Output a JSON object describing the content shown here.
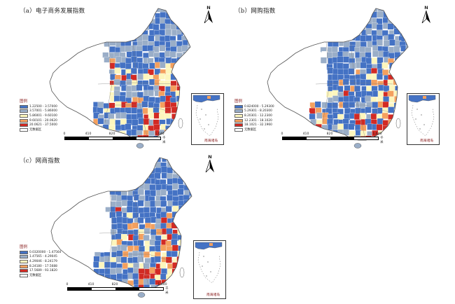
{
  "panels": [
    {
      "id": "a",
      "title": "（a）电子商务发展指数",
      "legend_title": "图例",
      "classes": [
        {
          "label": "1.22500 - 3.57000",
          "color": "#4472c4"
        },
        {
          "label": "3.57001 - 5.86000",
          "color": "#9aaec8"
        },
        {
          "label": "5.86001 - 9.60100",
          "color": "#fdf6bd"
        },
        {
          "label": "9.60101 - 20.0620",
          "color": "#f4a05e"
        },
        {
          "label": "20.0621 - 37.5000",
          "color": "#d22a24"
        }
      ],
      "no_data_label": "无数据区",
      "scale": {
        "ticks": [
          "0",
          "410",
          "820",
          "",
          "1,640"
        ],
        "unit": "千米"
      },
      "inset_label": "南海诸岛"
    },
    {
      "id": "b",
      "title": "（b）网购指数",
      "legend_title": "图例",
      "classes": [
        {
          "label": "0.824000 - 5.29300",
          "color": "#4472c4"
        },
        {
          "label": "5.29301 - 8.20300",
          "color": "#9aaec8"
        },
        {
          "label": "8.20301 - 12.2300",
          "color": "#fdf6bd"
        },
        {
          "label": "12.2301 - 18.1020",
          "color": "#f4a05e"
        },
        {
          "label": "18.1021 - 32.1960",
          "color": "#d22a24"
        }
      ],
      "no_data_label": "无数据区",
      "scale": {
        "ticks": [
          "0",
          "410",
          "820",
          "",
          "1,640"
        ],
        "unit": "千米"
      },
      "inset_label": "南海诸岛"
    },
    {
      "id": "c",
      "title": "（c）网商指数",
      "legend_title": "图例",
      "classes": [
        {
          "label": "0.0320000 - 1.47564",
          "color": "#4472c4"
        },
        {
          "label": "1.47565 - 4.29045",
          "color": "#9aaec8"
        },
        {
          "label": "4.29046 - 8.24179",
          "color": "#fdf6bd"
        },
        {
          "label": "8.24180 - 17.5688",
          "color": "#f4a05e"
        },
        {
          "label": "17.5689 - 93.1820",
          "color": "#d22a24"
        }
      ],
      "no_data_label": "无数据区",
      "scale": {
        "ticks": [
          "0",
          "410",
          "820",
          "",
          "1,640"
        ],
        "unit": "千米"
      },
      "inset_label": "南海诸岛"
    }
  ],
  "north_letter": "N",
  "colors": {
    "no_data": "#ffffff",
    "border": "#555555"
  }
}
